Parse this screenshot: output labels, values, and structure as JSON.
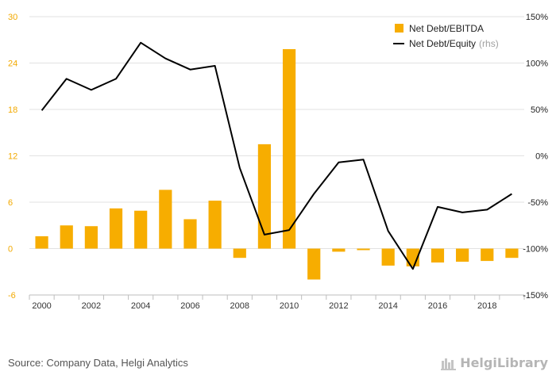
{
  "chart_data": {
    "type": "bar",
    "x": [
      "2000",
      "2001",
      "2002",
      "2003",
      "2004",
      "2005",
      "2006",
      "2007",
      "2008",
      "2009",
      "2010",
      "2011",
      "2012",
      "2013",
      "2014",
      "2015",
      "2016",
      "2017",
      "2018",
      "2019"
    ],
    "x_tick_labels": [
      "2000",
      "2002",
      "2004",
      "2006",
      "2008",
      "2010",
      "2012",
      "2014",
      "2016",
      "2018"
    ],
    "series": [
      {
        "name": "Net Debt/EBITDA",
        "type": "bar",
        "axis": "left",
        "color": "#f7ad00",
        "values": [
          1.6,
          3.0,
          2.9,
          5.2,
          4.9,
          7.6,
          3.8,
          6.2,
          -1.2,
          13.5,
          25.8,
          -4.0,
          -0.4,
          -0.2,
          -2.2,
          -2.3,
          -1.8,
          -1.7,
          -1.6,
          -1.2
        ]
      },
      {
        "name": "Net Debt/Equity",
        "name_note": "(rhs)",
        "type": "line",
        "axis": "right",
        "color": "#000000",
        "values": [
          49,
          83,
          71,
          83,
          122,
          105,
          93,
          97,
          -13,
          -85,
          -80,
          -41,
          -7,
          -4,
          -81,
          -122,
          -55,
          -61,
          -58,
          -41
        ]
      }
    ],
    "y_left": {
      "ylim": [
        -6,
        30
      ],
      "ticks": [
        "-6",
        "0",
        "6",
        "12",
        "18",
        "24",
        "30"
      ]
    },
    "y_right": {
      "ylim": [
        -150,
        150
      ],
      "ticks": [
        "-150%",
        "-100%",
        "-50%",
        "0%",
        "50%",
        "100%",
        "150%"
      ]
    },
    "grid": true,
    "legend_position": "top-right"
  },
  "footer": {
    "source": "Source: Company Data, Helgi Analytics",
    "brand": "HelgiLibrary"
  }
}
